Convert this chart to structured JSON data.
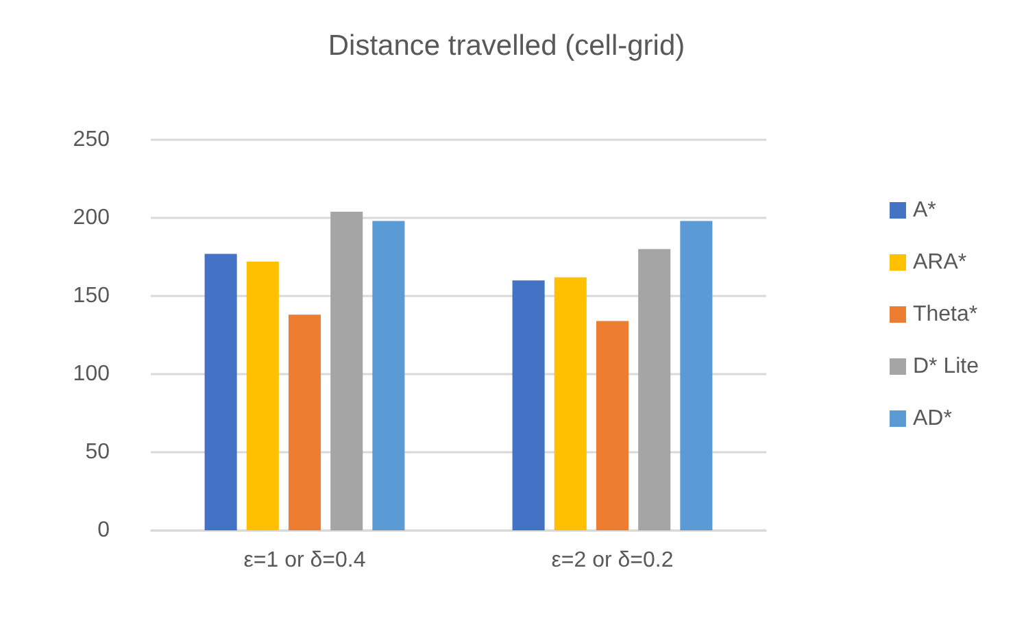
{
  "chart_data": {
    "type": "bar",
    "title": "Distance travelled (cell-grid)",
    "categories": [
      "ε=1 or δ=0.4",
      "ε=2 or δ=0.2"
    ],
    "series": [
      {
        "name": "A*",
        "color": "#4472c4",
        "values": [
          177,
          160
        ]
      },
      {
        "name": "ARA*",
        "color": "#ffc000",
        "values": [
          172,
          162
        ]
      },
      {
        "name": "Theta*",
        "color": "#ed7d31",
        "values": [
          138,
          134
        ]
      },
      {
        "name": "D* Lite",
        "color": "#a5a5a5",
        "values": [
          204,
          180
        ]
      },
      {
        "name": "AD*",
        "color": "#5b9bd5",
        "values": [
          198,
          198
        ]
      }
    ],
    "ylim": [
      0,
      250
    ],
    "yticks": [
      0,
      50,
      100,
      150,
      200,
      250
    ],
    "grid": "y",
    "legend": "right"
  }
}
